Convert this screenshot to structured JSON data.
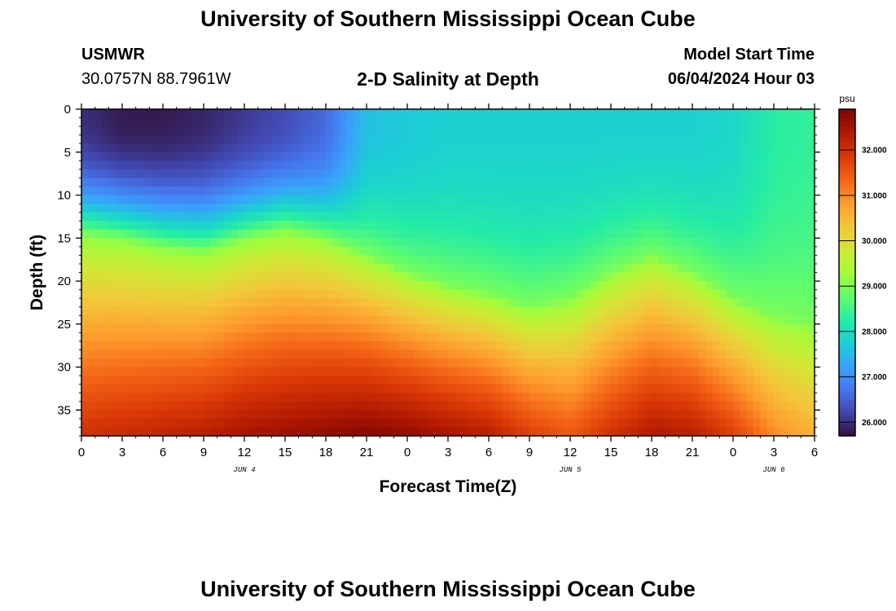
{
  "header": {
    "title": "University of Southern Mississippi Ocean Cube",
    "station": "USMWR",
    "coords": "30.0757N  88.7961W",
    "subtitle": "2-D Salinity at Depth",
    "start_label": "Model Start Time",
    "start_value": "06/04/2024 Hour 03"
  },
  "footer": {
    "title": "University of Southern Mississippi Ocean Cube"
  },
  "chart_data": {
    "type": "heatmap",
    "xlabel": "Forecast Time(Z)",
    "ylabel": "Depth (ft)",
    "x_tick_labels": [
      "0",
      "3",
      "6",
      "9",
      "12",
      "15",
      "18",
      "21",
      "0",
      "3",
      "6",
      "9",
      "12",
      "15",
      "18",
      "21",
      "0",
      "3",
      "6"
    ],
    "date_labels": [
      {
        "label": "JUN 4",
        "tick_index": 4
      },
      {
        "label": "JUN 5",
        "tick_index": 12
      },
      {
        "label": "JUN 6",
        "tick_index": 17
      }
    ],
    "x_range_hours": [
      0,
      54
    ],
    "ylim": [
      0,
      38
    ],
    "y_ticks": [
      0,
      5,
      10,
      15,
      20,
      25,
      30,
      35
    ],
    "colorbar": {
      "unit": "psu",
      "range": [
        25.7,
        32.9
      ],
      "tick_labels": [
        "26.000",
        "27.000",
        "28.000",
        "29.000",
        "30.000",
        "31.000",
        "32.000"
      ],
      "tick_values": [
        26,
        27,
        28,
        29,
        30,
        31,
        32
      ],
      "colors": [
        "#30123b",
        "#4145ab",
        "#4675ed",
        "#39a2fc",
        "#1bcfd4",
        "#24eca6",
        "#61fc6c",
        "#a4fc3b",
        "#d1e834",
        "#f3c63a",
        "#fe9b2d",
        "#f36315",
        "#d93806",
        "#b11901",
        "#7a0403"
      ]
    },
    "grid": false,
    "legend": "colorbar-right",
    "description_points": {
      "hours": [
        0,
        3,
        6,
        9,
        12,
        15,
        18,
        21,
        24,
        27,
        30,
        33,
        36,
        39,
        42,
        45,
        48,
        51,
        54
      ],
      "isohaline_29_depth_ft": [
        14.5,
        15,
        16,
        16.5,
        15,
        14,
        15,
        17,
        19,
        20.5,
        21.5,
        23,
        22,
        19,
        17,
        19,
        22,
        24,
        25
      ],
      "surface_salinity": [
        26.0,
        25.8,
        25.8,
        25.9,
        26.1,
        26.3,
        26.6,
        27.6,
        27.7,
        27.8,
        27.8,
        27.8,
        27.8,
        27.8,
        27.8,
        27.8,
        27.9,
        28.3,
        28.4
      ],
      "bottom_salinity": [
        32.0,
        32.1,
        32.2,
        32.3,
        32.5,
        32.6,
        32.7,
        32.8,
        32.7,
        32.5,
        32.3,
        31.8,
        31.5,
        32.0,
        32.4,
        32.3,
        31.8,
        31.0,
        30.6
      ]
    }
  }
}
